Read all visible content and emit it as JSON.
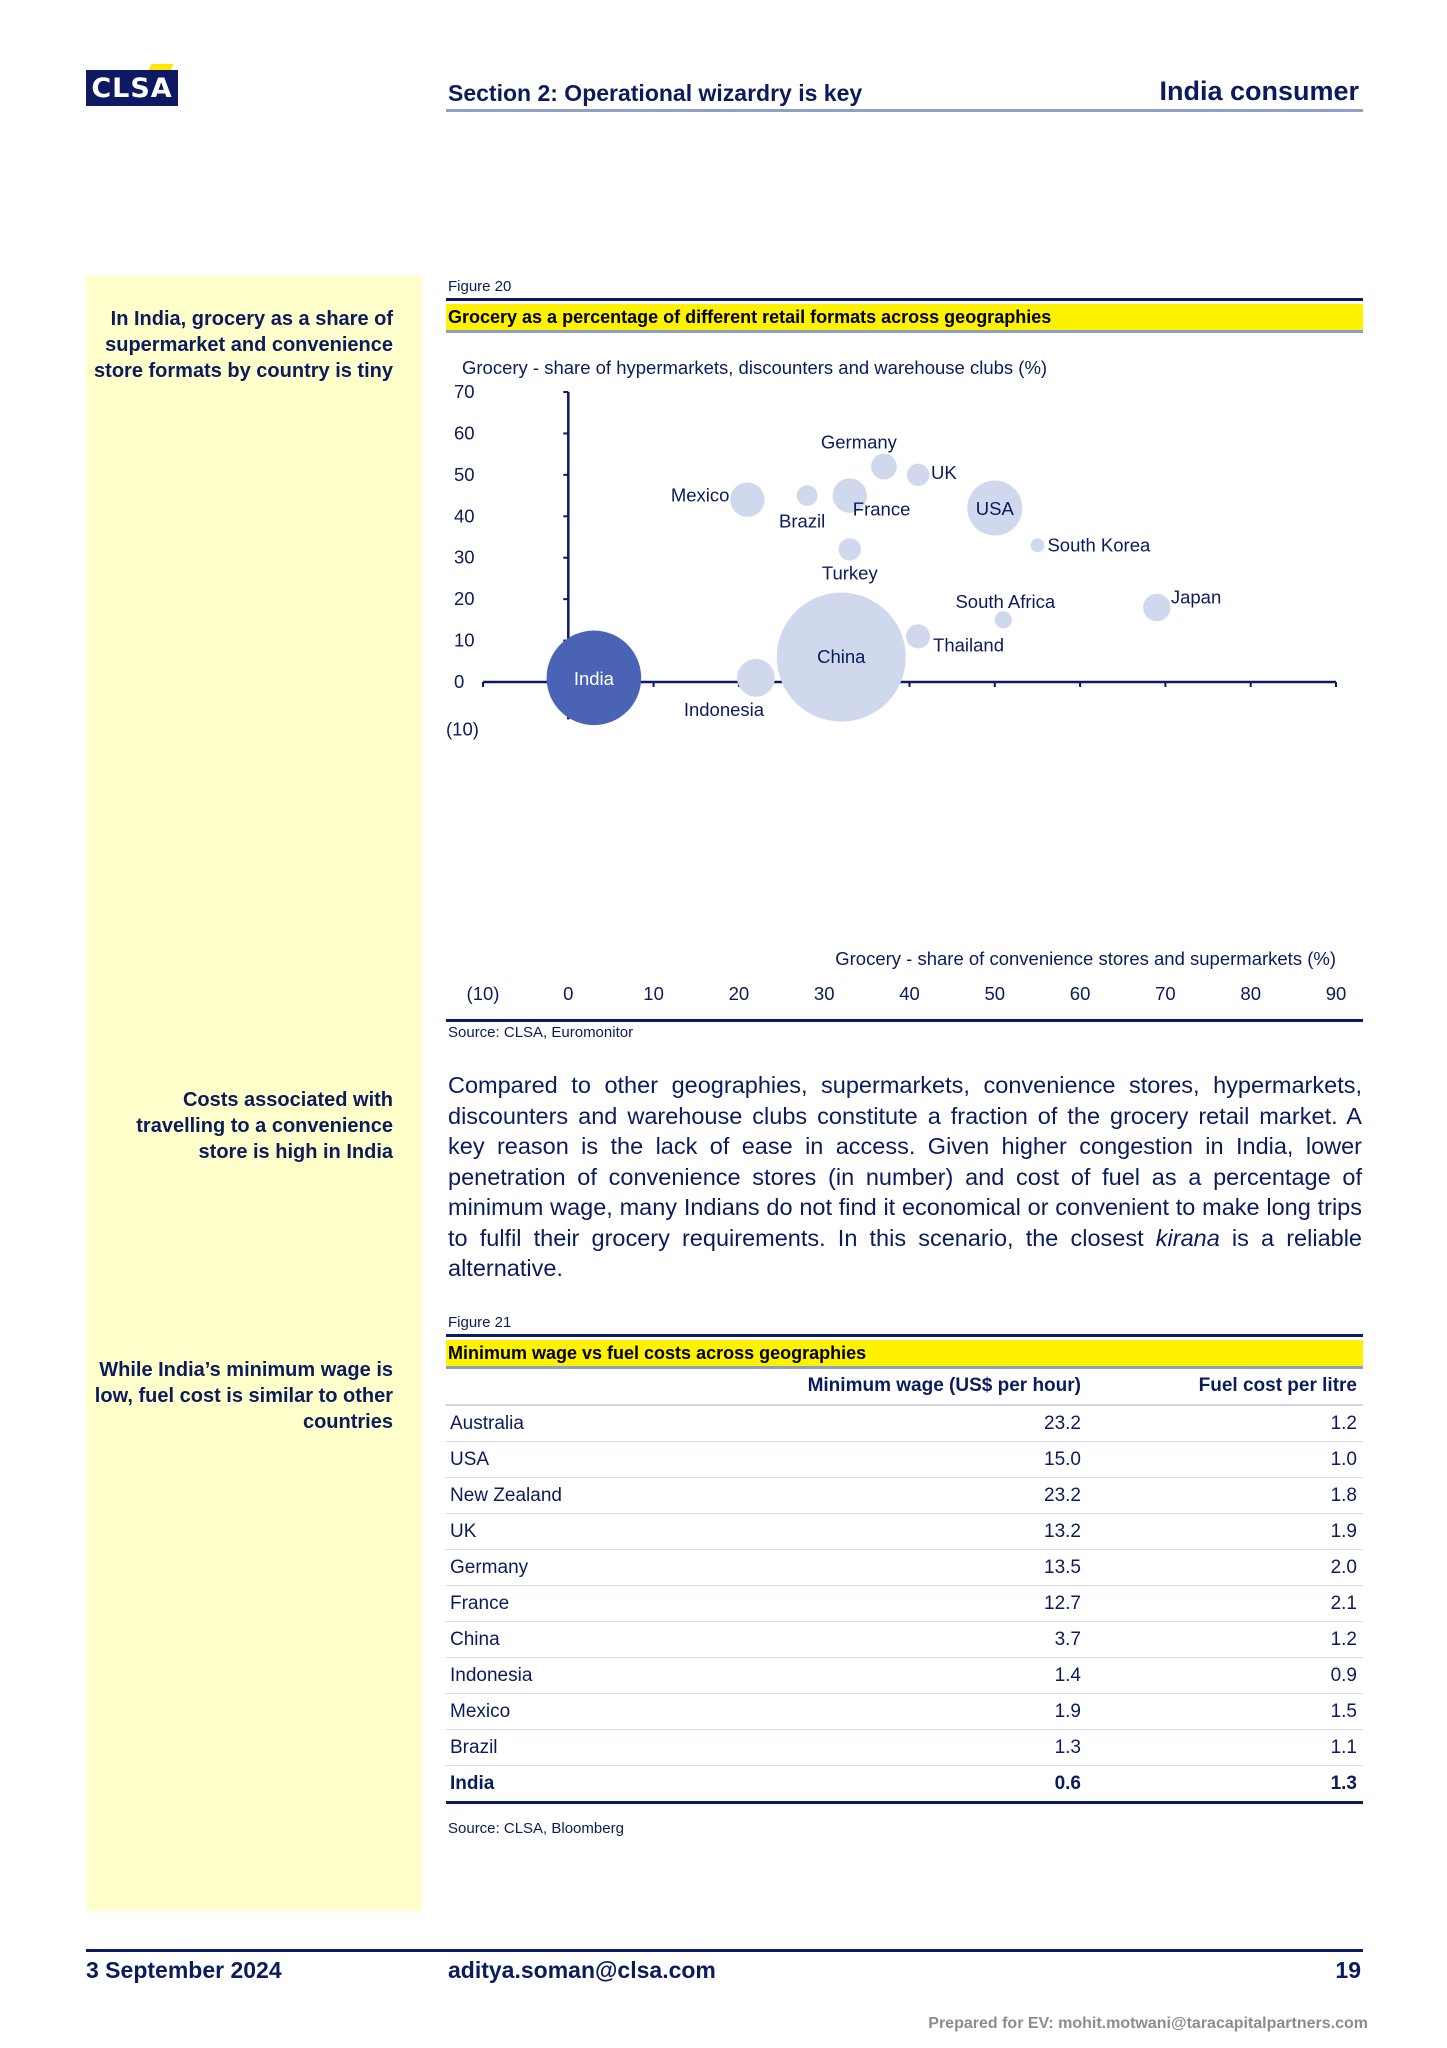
{
  "header": {
    "logo_text": "CLSA",
    "section_title": "Section 2: Operational wizardry is key",
    "doc_title": "India consumer"
  },
  "sidebar": {
    "notes": [
      "In India, grocery as a share of supermarket and convenience store formats by country is tiny",
      "Costs associated with travelling to a convenience store is high in India",
      "While India’s minimum wage is low, fuel cost is similar to other countries"
    ]
  },
  "figure20": {
    "label": "Figure 20",
    "title": "Grocery as a percentage of different retail formats across geographies",
    "source": "Source: CLSA, Euromonitor"
  },
  "chart_data": {
    "type": "scatter",
    "ylabel": "Grocery - share of hypermarkets, discounters and warehouse clubs (%)",
    "xlabel": "Grocery - share of convenience stores and supermarkets (%)",
    "xlim": [
      -10,
      90
    ],
    "ylim": [
      -10,
      70
    ],
    "x_ticks": [
      "(10)",
      "0",
      "10",
      "20",
      "30",
      "40",
      "50",
      "60",
      "70",
      "80",
      "90"
    ],
    "y_ticks": [
      "70",
      "60",
      "50",
      "40",
      "30",
      "20",
      "10",
      "0",
      "(10)"
    ],
    "bubble_color": "#cfd8ec",
    "highlight_color": "#4a63b5",
    "points": [
      {
        "name": "India",
        "x": 3,
        "y": 1,
        "size": 5.5,
        "highlight": true
      },
      {
        "name": "China",
        "x": 32,
        "y": 6,
        "size": 7.5
      },
      {
        "name": "Indonesia",
        "x": 22,
        "y": 1,
        "size": 2.2
      },
      {
        "name": "Thailand",
        "x": 41,
        "y": 11,
        "size": 1.4
      },
      {
        "name": "South Africa",
        "x": 51,
        "y": 15,
        "size": 1.0
      },
      {
        "name": "Japan",
        "x": 69,
        "y": 18,
        "size": 1.6
      },
      {
        "name": "Turkey",
        "x": 33,
        "y": 32,
        "size": 1.3
      },
      {
        "name": "South Korea",
        "x": 55,
        "y": 33,
        "size": 0.8
      },
      {
        "name": "USA",
        "x": 50,
        "y": 42,
        "size": 3.2
      },
      {
        "name": "Mexico",
        "x": 21,
        "y": 44,
        "size": 2.0
      },
      {
        "name": "Brazil",
        "x": 28,
        "y": 45,
        "size": 1.2
      },
      {
        "name": "France",
        "x": 33,
        "y": 45,
        "size": 2.0
      },
      {
        "name": "Germany",
        "x": 37,
        "y": 52,
        "size": 1.5
      },
      {
        "name": "UK",
        "x": 41,
        "y": 50,
        "size": 1.3
      }
    ]
  },
  "paragraph": {
    "before": "Compared to other geographies, supermarkets, convenience stores, hypermarkets, discounters and warehouse clubs constitute a fraction of the grocery retail market. A key reason is the lack of ease in access. Given higher congestion in India, lower penetration of convenience stores (in number) and cost of fuel as a percentage of minimum wage, many Indians do not find it economical or convenient to make long trips to fulfil their grocery requirements. In this scenario, the closest ",
    "italic": "kirana",
    "after": " is a reliable alternative."
  },
  "figure21": {
    "label": "Figure 21",
    "title": "Minimum wage vs fuel costs across geographies",
    "columns": [
      "",
      "Minimum wage (US$ per hour)",
      "Fuel cost per litre"
    ],
    "rows": [
      {
        "country": "Australia",
        "wage": "23.2",
        "fuel": "1.2"
      },
      {
        "country": "USA",
        "wage": "15.0",
        "fuel": "1.0"
      },
      {
        "country": "New Zealand",
        "wage": "23.2",
        "fuel": "1.8"
      },
      {
        "country": "UK",
        "wage": "13.2",
        "fuel": "1.9"
      },
      {
        "country": "Germany",
        "wage": "13.5",
        "fuel": "2.0"
      },
      {
        "country": "France",
        "wage": "12.7",
        "fuel": "2.1"
      },
      {
        "country": "China",
        "wage": "3.7",
        "fuel": "1.2"
      },
      {
        "country": "Indonesia",
        "wage": "1.4",
        "fuel": "0.9"
      },
      {
        "country": "Mexico",
        "wage": "1.9",
        "fuel": "1.5"
      },
      {
        "country": "Brazil",
        "wage": "1.3",
        "fuel": "1.1"
      },
      {
        "country": "India",
        "wage": "0.6",
        "fuel": "1.3",
        "highlight": true
      }
    ],
    "source": "Source: CLSA, Bloomberg"
  },
  "footer": {
    "date": "3 September 2024",
    "email": "aditya.soman@clsa.com",
    "page": "19",
    "prepared_for": "Prepared for EV: mohit.motwani@taracapitalpartners.com"
  }
}
